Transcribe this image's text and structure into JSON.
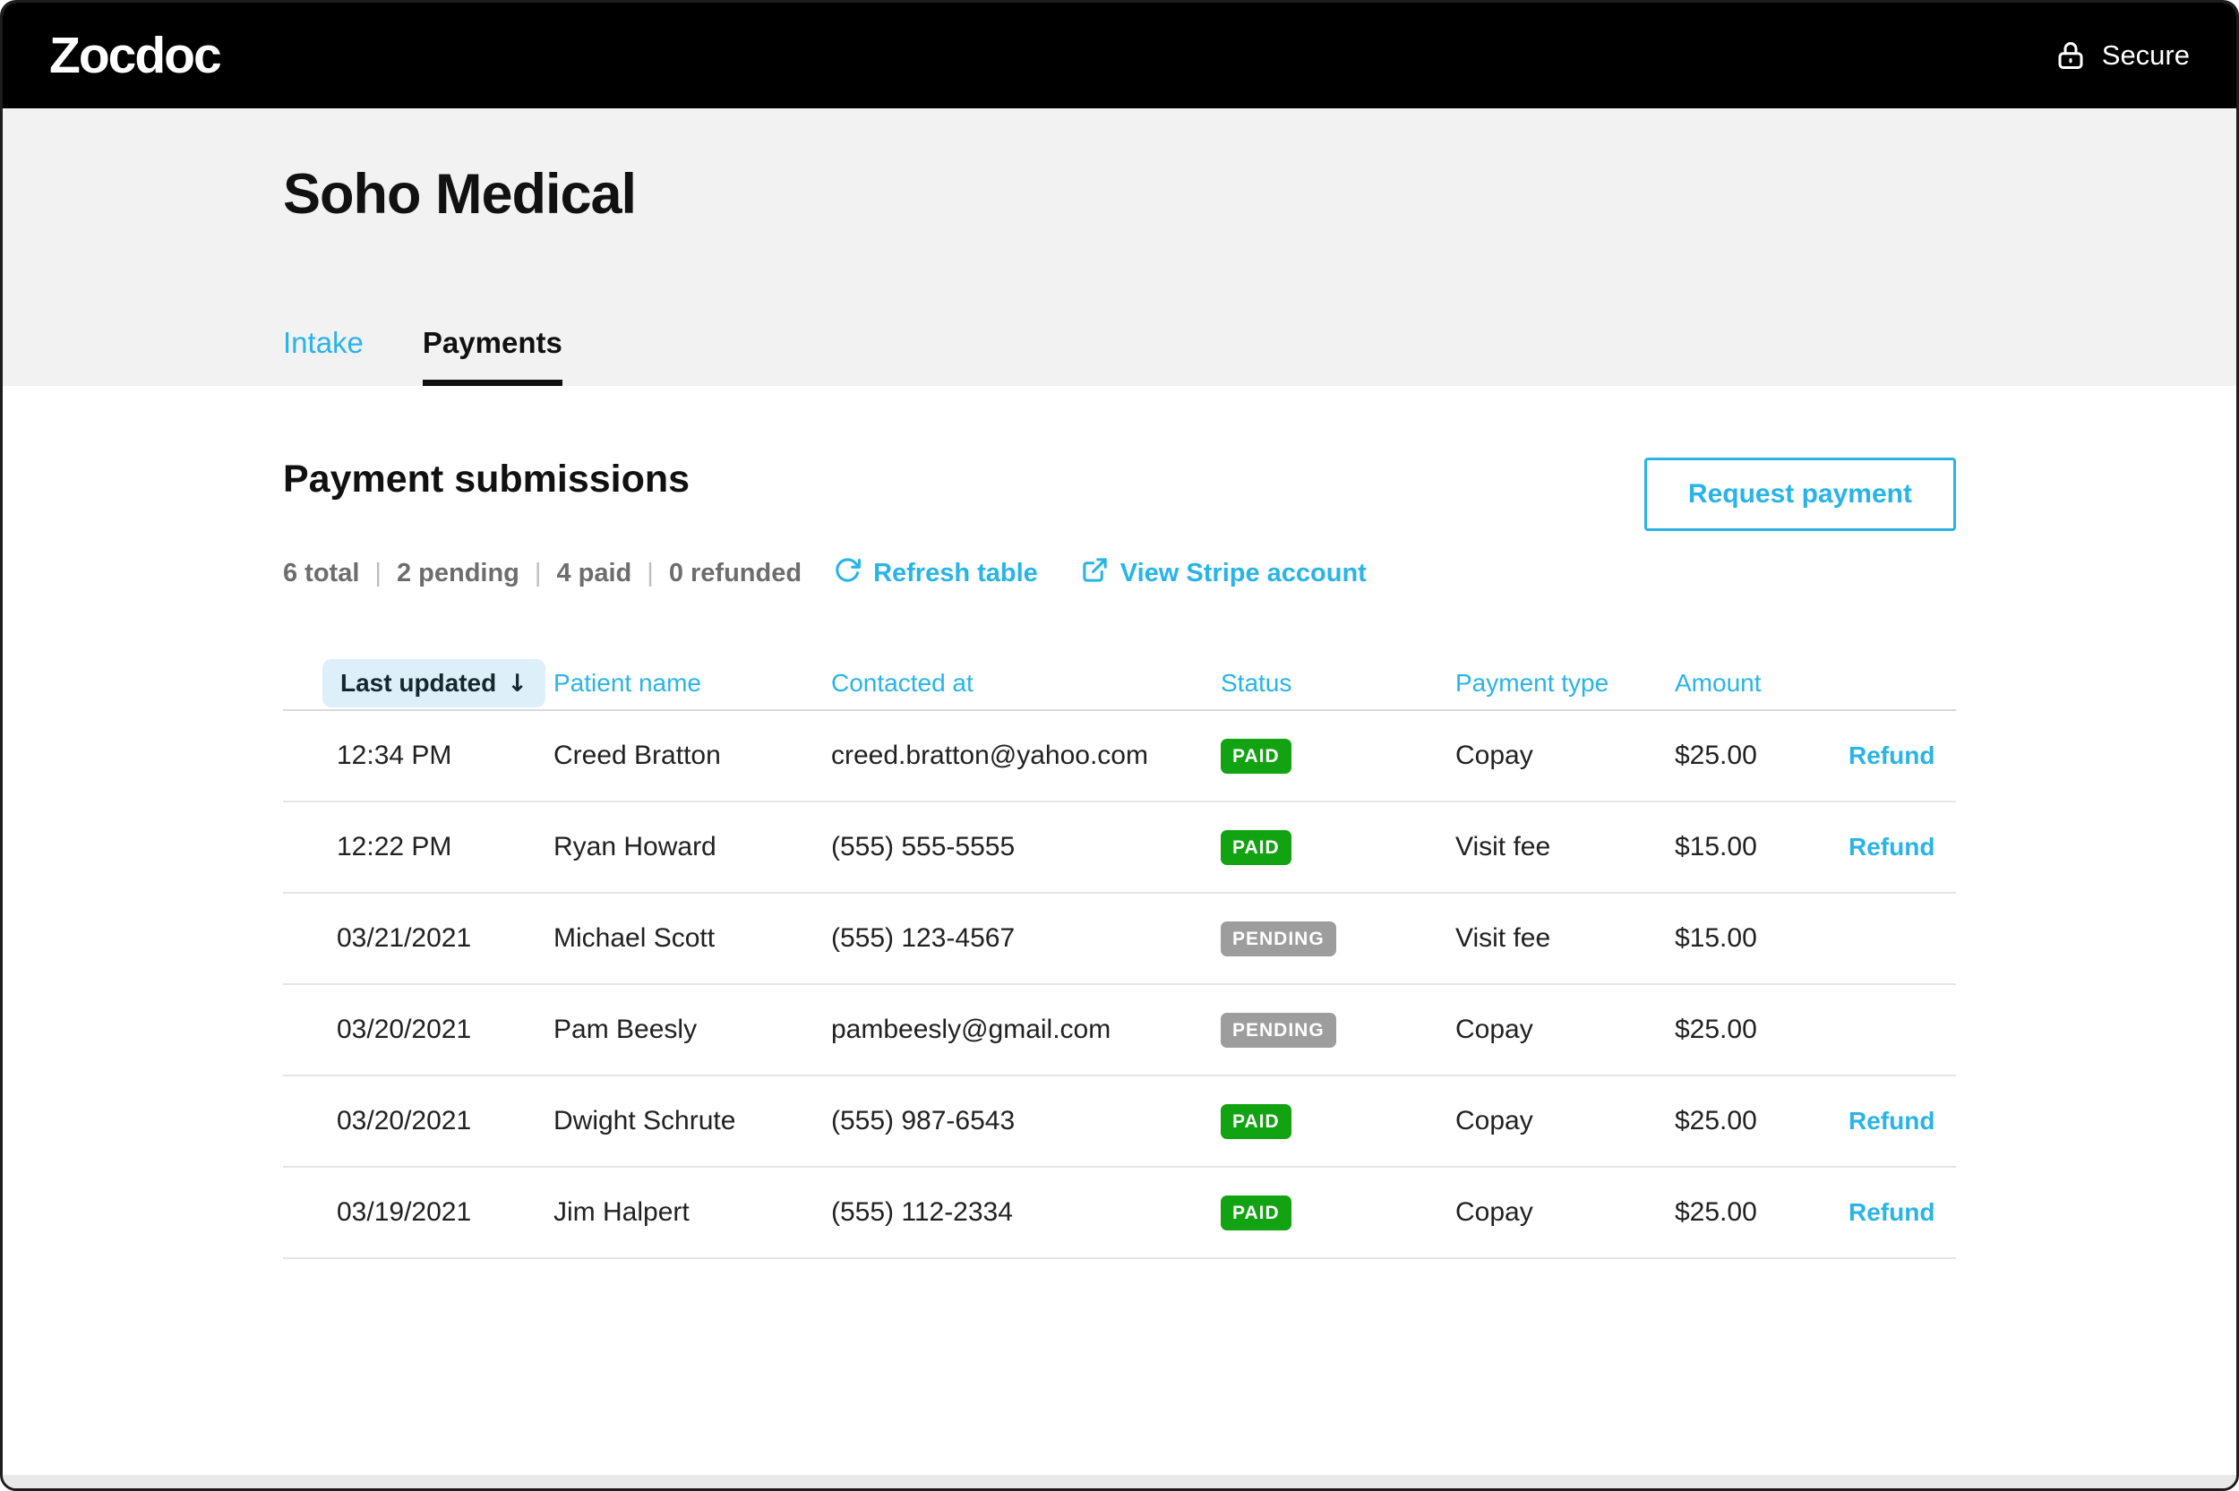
{
  "topbar": {
    "brand": "Zocdoc",
    "secure_label": "Secure"
  },
  "header": {
    "practice_name": "Soho Medical",
    "tabs": [
      {
        "label": "Intake",
        "active": false
      },
      {
        "label": "Payments",
        "active": true
      }
    ]
  },
  "payments": {
    "title": "Payment submissions",
    "stats": [
      "6 total",
      "2 pending",
      "4 paid",
      "0 refunded"
    ],
    "stats_separator": "|",
    "actions": {
      "refresh_label": "Refresh table",
      "stripe_label": "View Stripe account",
      "request_label": "Request payment"
    },
    "table": {
      "sort_column": "Last updated",
      "sort_arrow": "↓",
      "columns": [
        "Last updated",
        "Patient name",
        "Contacted at",
        "Status",
        "Payment type",
        "Amount"
      ],
      "rows": [
        {
          "updated": "12:34 PM",
          "name": "Creed Bratton",
          "contact": "creed.bratton@yahoo.com",
          "status": "PAID",
          "type": "Copay",
          "amount": "$25.00",
          "action": "Refund"
        },
        {
          "updated": "12:22 PM",
          "name": "Ryan Howard",
          "contact": "(555) 555-5555",
          "status": "PAID",
          "type": "Visit fee",
          "amount": "$15.00",
          "action": "Refund"
        },
        {
          "updated": "03/21/2021",
          "name": "Michael Scott",
          "contact": "(555) 123-4567",
          "status": "PENDING",
          "type": "Visit fee",
          "amount": "$15.00",
          "action": ""
        },
        {
          "updated": "03/20/2021",
          "name": "Pam Beesly",
          "contact": "pambeesly@gmail.com",
          "status": "PENDING",
          "type": "Copay",
          "amount": "$25.00",
          "action": ""
        },
        {
          "updated": "03/20/2021",
          "name": "Dwight Schrute",
          "contact": "(555) 987-6543",
          "status": "PAID",
          "type": "Copay",
          "amount": "$25.00",
          "action": "Refund"
        },
        {
          "updated": "03/19/2021",
          "name": "Jim Halpert",
          "contact": "(555) 112-2334",
          "status": "PAID",
          "type": "Copay",
          "amount": "$25.00",
          "action": "Refund"
        }
      ]
    }
  },
  "colors": {
    "accent": "#29b4e8",
    "paid_green": "#12a312",
    "pending_gray": "#9d9d9d"
  }
}
